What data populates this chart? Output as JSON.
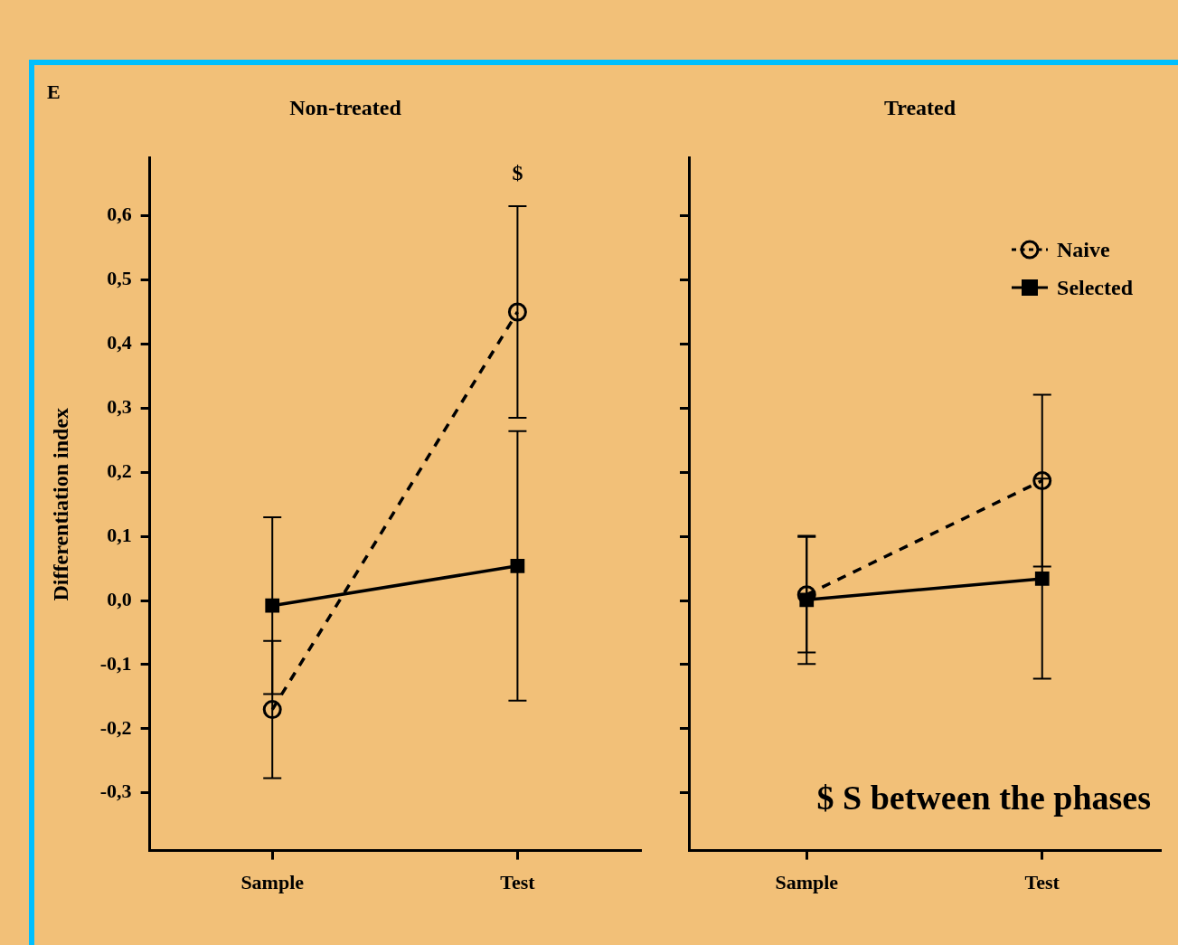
{
  "chart_data": [
    {
      "type": "line",
      "title": "Non-treated",
      "ylabel": "Differentiation index",
      "categories": [
        "Sample",
        "Test"
      ],
      "series": [
        {
          "color": "#000000",
          "values": [
            -0.17,
            0.45
          ],
          "errors": [
            0.107,
            0.165
          ],
          "marker": "circle",
          "line_style": "dashed"
        },
        {
          "color": "#000000",
          "values": [
            -0.008,
            0.054
          ],
          "errors": [
            0.138,
            0.21
          ],
          "marker": "square",
          "line_style": "solid"
        }
      ],
      "ylim": [
        -0.39,
        0.69
      ],
      "yticks": [
        {
          "value": -0.3,
          "label": "-0,3"
        },
        {
          "value": -0.2,
          "label": "-0,2"
        },
        {
          "value": -0.1,
          "label": "-0,1"
        },
        {
          "value": 0,
          "label": "0,0"
        },
        {
          "value": 0.1,
          "label": "0,1"
        },
        {
          "value": 0.2,
          "label": "0,2"
        },
        {
          "value": 0.3,
          "label": "0,3"
        },
        {
          "value": 0.4,
          "label": "0,4"
        },
        {
          "value": 0.5,
          "label": "0,5"
        },
        {
          "value": 0.6,
          "label": "0,6"
        }
      ],
      "annotations": [
        "E",
        "$"
      ],
      "grid": false,
      "legend": false
    },
    {
      "type": "line",
      "title": "Treated",
      "categories": [
        "Sample",
        "Test"
      ],
      "series": [
        {
          "name": "Naive",
          "color": "#000000",
          "values": [
            0.009,
            0.187
          ],
          "errors": [
            0.09,
            0.134
          ],
          "marker": "circle",
          "line_style": "dashed"
        },
        {
          "name": "Selected",
          "color": "#000000",
          "values": [
            0.001,
            0.034
          ],
          "errors": [
            0.1,
            0.156
          ],
          "marker": "square",
          "line_style": "solid"
        }
      ],
      "ylim": [
        -0.39,
        0.69
      ],
      "yticks": [
        {
          "value": -0.3,
          "label": null
        },
        {
          "value": -0.2,
          "label": null
        },
        {
          "value": -0.1,
          "label": null
        },
        {
          "value": 0,
          "label": null
        },
        {
          "value": 0.1,
          "label": null
        },
        {
          "value": 0.2,
          "label": null
        },
        {
          "value": 0.3,
          "label": null
        },
        {
          "value": 0.4,
          "label": null
        },
        {
          "value": 0.5,
          "label": null
        },
        {
          "value": 0.6,
          "label": null
        }
      ],
      "tick_labels": "x",
      "annotations": [
        "$ S between the phases"
      ],
      "grid": false,
      "legend": "top right"
    }
  ]
}
